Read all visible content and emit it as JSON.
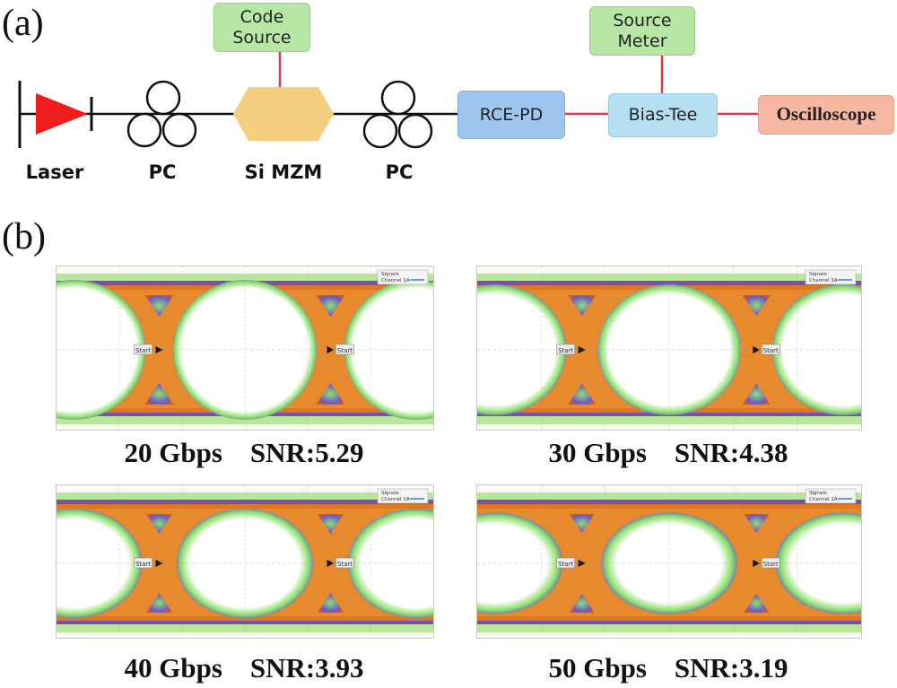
{
  "panel_a": {
    "label": "(a)",
    "components": {
      "laser": "Laser",
      "pc1": "PC",
      "mzm": "Si MZM",
      "pc2": "PC"
    },
    "boxes": {
      "code_source": "Code\nSource",
      "rce_pd": "RCE-PD",
      "source_meter": "Source\nMeter",
      "bias_tee": "Bias-Tee",
      "oscilloscope": "Oscilloscope"
    },
    "colors": {
      "laser": "#ee1c1c",
      "mzm": "#f4cf7f",
      "code_source": "#b7e7a5",
      "rce_pd": "#9ec5ee",
      "bias_tee": "#b6dff2",
      "oscilloscope": "#f6b7a3",
      "rf_line": "#d93a4a"
    }
  },
  "panel_b": {
    "label": "(b)",
    "legend_title": "Signals",
    "legend_item": "Channel 1A",
    "marker_text": "Start",
    "eyes": [
      {
        "rate": "20 Gbps",
        "snr": "SNR:5.29",
        "openness": 1.0
      },
      {
        "rate": "30 Gbps",
        "snr": "SNR:4.38",
        "openness": 0.85
      },
      {
        "rate": "40 Gbps",
        "snr": "SNR:3.93",
        "openness": 0.65
      },
      {
        "rate": "50 Gbps",
        "snr": "SNR:3.19",
        "openness": 0.5
      }
    ]
  }
}
